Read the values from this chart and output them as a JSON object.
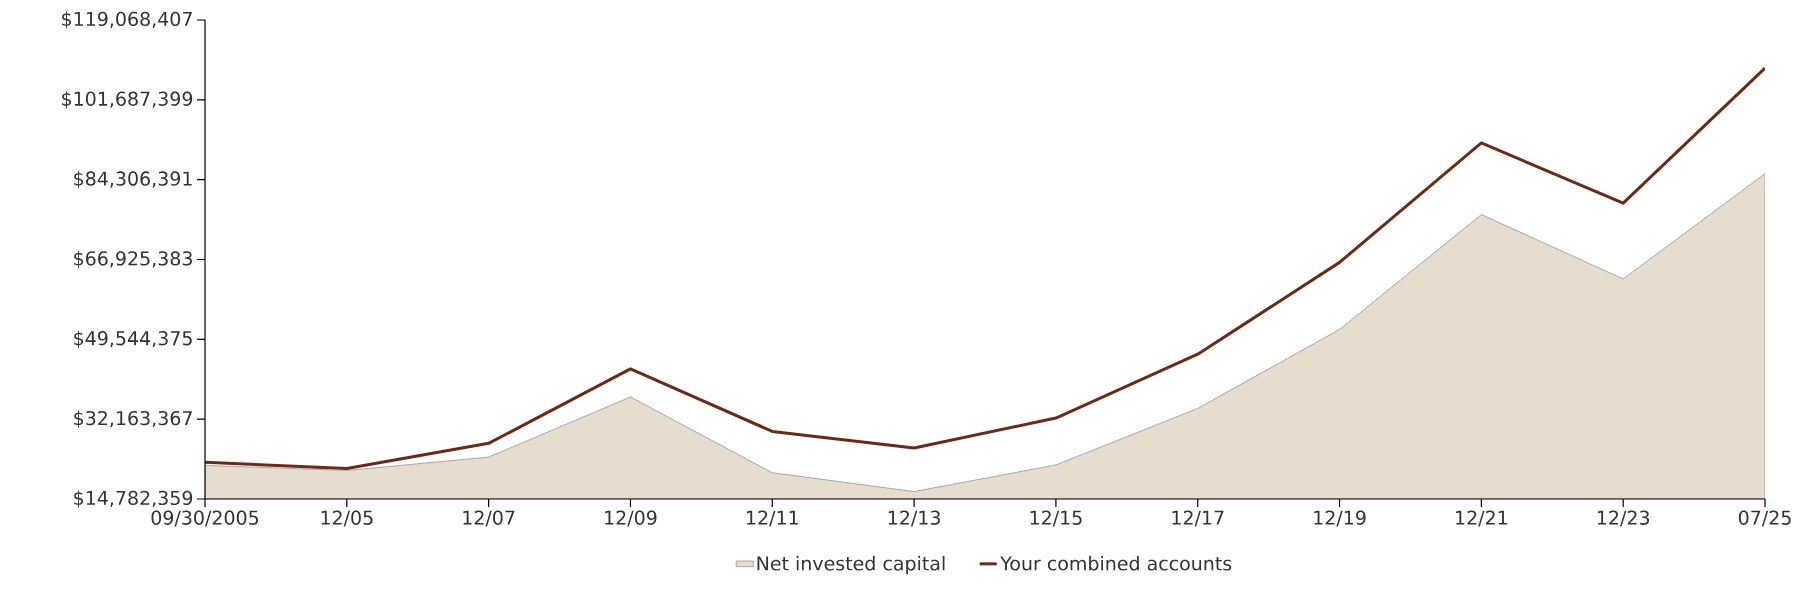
{
  "chart_data": {
    "type": "line",
    "categories": [
      "09/30/2005",
      "12/05",
      "12/07",
      "12/09",
      "12/11",
      "12/13",
      "12/15",
      "12/17",
      "12/19",
      "12/21",
      "12/23",
      "07/25"
    ],
    "series": [
      {
        "name": "Net invested capital",
        "type": "area",
        "color": "#e6ddcf",
        "values": [
          22100000.0,
          21000000.0,
          23900000.0,
          37000000.0,
          20500000.0,
          16400000.0,
          22200000.0,
          34500000.0,
          51700000.0,
          76700000.0,
          62700000.0,
          85600000.0
        ]
      },
      {
        "name": "Your combined accounts",
        "color": "#6b2a16",
        "values": [
          22800000.0,
          21400000.0,
          26900000.0,
          43100000.0,
          29500000.0,
          25900000.0,
          32400000.0,
          46300000.0,
          66300000.0,
          92300000.0,
          79200000.0,
          108600000.0
        ]
      }
    ],
    "ylim": [
      14782359,
      119068407
    ],
    "yticks": [
      {
        "value": 14782359,
        "label": "$14,782,359"
      },
      {
        "value": 32163367,
        "label": "$32,163,367"
      },
      {
        "value": 49544375,
        "label": "$49,544,375"
      },
      {
        "value": 66925383,
        "label": "$66,925,383"
      },
      {
        "value": 84306391,
        "label": "$84,306,391"
      },
      {
        "value": 101687399,
        "label": "$101,687,399"
      },
      {
        "value": 119068407,
        "label": "$119,068,407"
      }
    ],
    "legend": "bottom",
    "marker": "none",
    "line_style": "solid"
  }
}
